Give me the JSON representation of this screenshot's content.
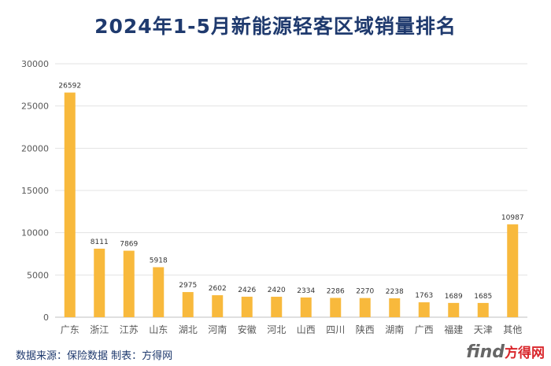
{
  "chart_data": {
    "type": "bar",
    "title": "2024年1-5月新能源轻客区域销量排名",
    "categories": [
      "广东",
      "浙江",
      "江苏",
      "山东",
      "湖北",
      "河南",
      "安徽",
      "河北",
      "山西",
      "四川",
      "陕西",
      "湖南",
      "广西",
      "福建",
      "天津",
      "其他"
    ],
    "values": [
      26592,
      8111,
      7869,
      5918,
      2975,
      2602,
      2426,
      2420,
      2334,
      2286,
      2270,
      2238,
      1763,
      1689,
      1685,
      10987
    ],
    "ylim": [
      0,
      30000
    ],
    "yticks": [
      0,
      5000,
      10000,
      15000,
      20000,
      25000,
      30000
    ],
    "grid": true,
    "bar_color": "#f8b93c",
    "xlabel": "",
    "ylabel": ""
  },
  "footer": {
    "source": "数据来源：保险数据 制表：方得网",
    "logo_main": "find",
    "logo_accent": "方得网"
  }
}
